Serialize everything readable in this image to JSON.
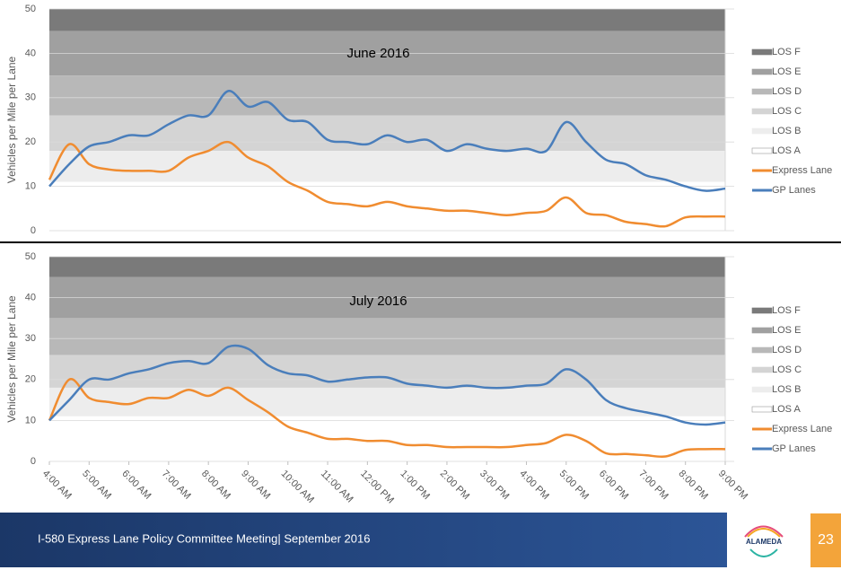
{
  "chart_data": [
    {
      "type": "line",
      "title": "June 2016",
      "y_label": "Vehicles per Mile per Lane",
      "xlim": [
        4,
        21
      ],
      "ylim": [
        0,
        50
      ],
      "yticks": [
        0,
        10,
        20,
        30,
        40,
        50
      ],
      "grid": true,
      "legend": "right",
      "bands": [
        {
          "name": "LOS F",
          "from": 45,
          "to": 50,
          "color": "#7a7a7a"
        },
        {
          "name": "LOS E",
          "from": 35,
          "to": 45,
          "color": "#a0a0a0"
        },
        {
          "name": "LOS D",
          "from": 26,
          "to": 35,
          "color": "#b8b8b8"
        },
        {
          "name": "LOS C",
          "from": 18,
          "to": 26,
          "color": "#d4d4d4"
        },
        {
          "name": "LOS B",
          "from": 11,
          "to": 18,
          "color": "#ededed"
        },
        {
          "name": "LOS A",
          "from": 0,
          "to": 11,
          "color": "#ffffff"
        }
      ],
      "x": [
        4,
        4.5,
        5,
        5.5,
        6,
        6.5,
        7,
        7.5,
        8,
        8.5,
        9,
        9.5,
        10,
        10.5,
        11,
        11.5,
        12,
        12.5,
        13,
        13.5,
        14,
        14.5,
        15,
        15.5,
        16,
        16.5,
        17,
        17.5,
        18,
        18.5,
        19,
        19.5,
        20,
        20.5,
        21
      ],
      "series": [
        {
          "name": "Express Lane",
          "color": "#f08c30",
          "values": [
            11.5,
            19.5,
            15,
            13.8,
            13.5,
            13.5,
            13.5,
            16.5,
            18,
            20,
            16.5,
            14.5,
            11,
            9,
            6.5,
            6,
            5.5,
            6.5,
            5.5,
            5,
            4.5,
            4.5,
            4,
            3.5,
            4,
            4.5,
            7.5,
            4,
            3.5,
            2,
            1.5,
            1,
            3,
            3.2,
            3.2
          ]
        },
        {
          "name": "GP Lanes",
          "color": "#4a7ebb",
          "values": [
            10,
            15,
            19,
            20,
            21.5,
            21.5,
            24,
            26,
            26,
            31.5,
            28,
            29,
            25,
            24.5,
            20.5,
            20,
            19.5,
            21.5,
            20,
            20.5,
            18,
            19.5,
            18.5,
            18,
            18.5,
            18,
            24.5,
            20,
            16,
            15,
            12.5,
            11.5,
            10,
            9,
            9.5
          ]
        }
      ]
    },
    {
      "type": "line",
      "title": "July 2016",
      "y_label": "Vehicles per Mile per Lane",
      "xlim": [
        4,
        21
      ],
      "ylim": [
        0,
        50
      ],
      "yticks": [
        0,
        10,
        20,
        30,
        40,
        50
      ],
      "grid": true,
      "legend": "right",
      "xticks": [
        {
          "value": 4,
          "label": "4:00 AM"
        },
        {
          "value": 5,
          "label": "5:00 AM"
        },
        {
          "value": 6,
          "label": "6:00 AM"
        },
        {
          "value": 7,
          "label": "7:00 AM"
        },
        {
          "value": 8,
          "label": "8:00 AM"
        },
        {
          "value": 9,
          "label": "9:00 AM"
        },
        {
          "value": 10,
          "label": "10:00 AM"
        },
        {
          "value": 11,
          "label": "11:00 AM"
        },
        {
          "value": 12,
          "label": "12:00 PM"
        },
        {
          "value": 13,
          "label": "1:00 PM"
        },
        {
          "value": 14,
          "label": "2:00 PM"
        },
        {
          "value": 15,
          "label": "3:00 PM"
        },
        {
          "value": 16,
          "label": "4:00 PM"
        },
        {
          "value": 17,
          "label": "5:00 PM"
        },
        {
          "value": 18,
          "label": "6:00 PM"
        },
        {
          "value": 19,
          "label": "7:00 PM"
        },
        {
          "value": 20,
          "label": "8:00 PM"
        },
        {
          "value": 21,
          "label": "9:00 PM"
        }
      ],
      "bands": [
        {
          "name": "LOS F",
          "from": 45,
          "to": 50,
          "color": "#7a7a7a"
        },
        {
          "name": "LOS E",
          "from": 35,
          "to": 45,
          "color": "#a0a0a0"
        },
        {
          "name": "LOS D",
          "from": 26,
          "to": 35,
          "color": "#b8b8b8"
        },
        {
          "name": "LOS C",
          "from": 18,
          "to": 26,
          "color": "#d4d4d4"
        },
        {
          "name": "LOS B",
          "from": 11,
          "to": 18,
          "color": "#ededed"
        },
        {
          "name": "LOS A",
          "from": 0,
          "to": 11,
          "color": "#ffffff"
        }
      ],
      "x": [
        4,
        4.5,
        5,
        5.5,
        6,
        6.5,
        7,
        7.5,
        8,
        8.5,
        9,
        9.5,
        10,
        10.5,
        11,
        11.5,
        12,
        12.5,
        13,
        13.5,
        14,
        14.5,
        15,
        15.5,
        16,
        16.5,
        17,
        17.5,
        18,
        18.5,
        19,
        19.5,
        20,
        20.5,
        21
      ],
      "series": [
        {
          "name": "Express Lane",
          "color": "#f08c30",
          "values": [
            10,
            20,
            15.5,
            14.5,
            14,
            15.5,
            15.5,
            17.5,
            16,
            18,
            15,
            12,
            8.5,
            7,
            5.5,
            5.5,
            5,
            5,
            4,
            4,
            3.5,
            3.5,
            3.5,
            3.5,
            4,
            4.5,
            6.5,
            5,
            2,
            1.8,
            1.5,
            1.2,
            2.8,
            3,
            3
          ]
        },
        {
          "name": "GP Lanes",
          "color": "#4a7ebb",
          "values": [
            10,
            15,
            20,
            20,
            21.5,
            22.5,
            24,
            24.5,
            24,
            28,
            27.5,
            23.5,
            21.5,
            21,
            19.5,
            20,
            20.5,
            20.5,
            19,
            18.5,
            18,
            18.5,
            18,
            18,
            18.5,
            19,
            22.5,
            20,
            15,
            13,
            12,
            11,
            9.5,
            9,
            9.5
          ]
        }
      ]
    }
  ],
  "footer": {
    "text": "I-580 Express Lane Policy Committee Meeting| September 2016",
    "logo": "ALAMEDA",
    "page": "23"
  }
}
